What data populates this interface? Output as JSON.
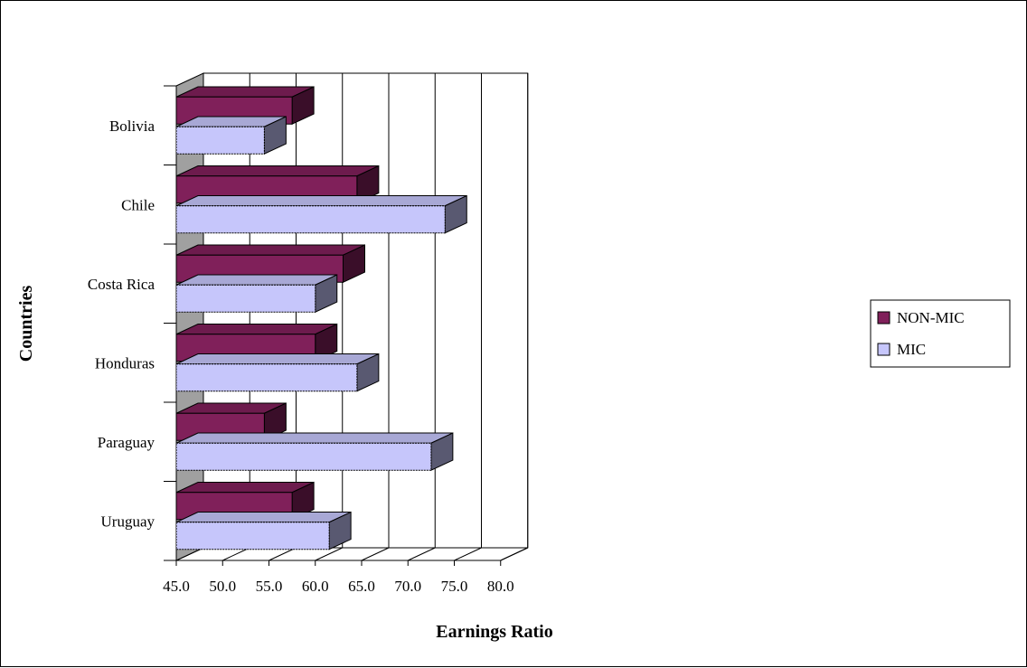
{
  "chart_data": {
    "type": "bar",
    "orientation": "horizontal",
    "style": "3d-clustered",
    "categories": [
      "Bolivia",
      "Chile",
      "Costa Rica",
      "Honduras",
      "Paraguay",
      "Uruguay"
    ],
    "series": [
      {
        "name": "NON-MIC",
        "color": "#80205a",
        "values": [
          57.5,
          64.5,
          63.0,
          60.0,
          54.5,
          57.5
        ]
      },
      {
        "name": "MIC",
        "color": "#c6c6fb",
        "values": [
          54.5,
          74.0,
          60.0,
          64.5,
          72.5,
          61.5
        ]
      }
    ],
    "xlabel": "Earnings Ratio",
    "ylabel": "Countries",
    "xlim": [
      45.0,
      80.0
    ],
    "xticks": [
      "45.0",
      "50.0",
      "55.0",
      "60.0",
      "65.0",
      "70.0",
      "75.0",
      "80.0"
    ],
    "grid": "vertical",
    "legend_position": "right"
  }
}
